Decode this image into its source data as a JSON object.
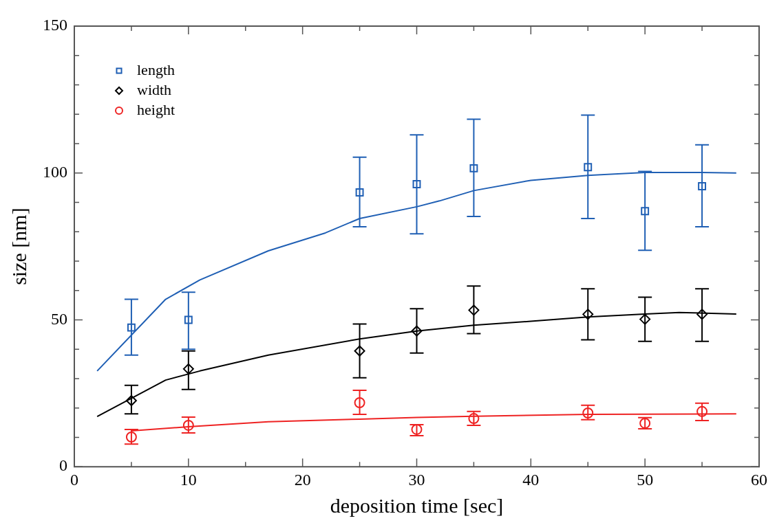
{
  "chart_data": {
    "type": "scatter",
    "xlabel": "deposition time [sec]",
    "ylabel": "size [nm]",
    "x": [
      5,
      10,
      25,
      30,
      35,
      45,
      50,
      55
    ],
    "xlim": [
      0,
      60
    ],
    "xticks": [
      0,
      {
        "value": 5,
        "label": null
      },
      10,
      {
        "value": 15,
        "label": null
      },
      20,
      {
        "value": 25,
        "label": null
      },
      30,
      {
        "value": 35,
        "label": null
      },
      40,
      {
        "value": 45,
        "label": null
      },
      50,
      {
        "value": 55,
        "label": null
      },
      60
    ],
    "ylim": [
      0,
      150
    ],
    "yticks": [
      0,
      {
        "value": 10,
        "label": null
      },
      {
        "value": 20,
        "label": null
      },
      {
        "value": 30,
        "label": null
      },
      {
        "value": 40,
        "label": null
      },
      50,
      {
        "value": 60,
        "label": null
      },
      {
        "value": 70,
        "label": null
      },
      {
        "value": 80,
        "label": null
      },
      {
        "value": 90,
        "label": null
      },
      100,
      {
        "value": 110,
        "label": null
      },
      {
        "value": 120,
        "label": null
      },
      {
        "value": 130,
        "label": null
      },
      {
        "value": 140,
        "label": null
      },
      150
    ],
    "grid": false,
    "legend": "top left",
    "series": [
      {
        "name": "length",
        "color": "#1f5fb4",
        "marker": "square",
        "values": [
          47.4,
          50,
          93.4,
          96.2,
          101.6,
          102,
          87,
          95.5
        ],
        "errors": [
          [
            38,
            57
          ],
          [
            40,
            59.4
          ],
          [
            81.7,
            105.4
          ],
          [
            79.3,
            113
          ],
          [
            85.2,
            118.3
          ],
          [
            84.5,
            119.7
          ],
          [
            73.7,
            100.5
          ],
          [
            81.7,
            109.6
          ]
        ]
      },
      {
        "name": "width",
        "color": "#000000",
        "marker": "diamond",
        "values": [
          22.5,
          33.3,
          39.4,
          46.2,
          53.3,
          51.9,
          50.2,
          51.9
        ],
        "errors": [
          [
            18,
            27.7
          ],
          [
            26.3,
            39.4
          ],
          [
            30.3,
            48.6
          ],
          [
            38.7,
            53.8
          ],
          [
            45.3,
            61.5
          ],
          [
            43.2,
            60.6
          ],
          [
            42.7,
            57.7
          ],
          [
            42.7,
            60.6
          ]
        ]
      },
      {
        "name": "height",
        "color": "#ee2222",
        "marker": "circle",
        "values": [
          10.1,
          14.1,
          21.8,
          12.7,
          16.4,
          18.3,
          14.8,
          18.8
        ],
        "errors": [
          [
            7.7,
            12.7
          ],
          [
            11.5,
            16.9
          ],
          [
            17.8,
            26
          ],
          [
            10.6,
            14.3
          ],
          [
            14.1,
            18.8
          ],
          [
            16,
            20.9
          ],
          [
            12.9,
            16.7
          ],
          [
            15.7,
            21.6
          ]
        ]
      },
      {
        "type": "line",
        "color": "#1f5fb4",
        "line_style": "solid",
        "x": [
          2,
          8,
          11,
          17,
          22,
          25,
          30,
          32,
          35,
          40,
          45,
          50,
          55,
          58
        ],
        "values": [
          32.6,
          57,
          63.6,
          73.5,
          79.6,
          84.5,
          88.5,
          90.5,
          94,
          97.5,
          99.2,
          100.2,
          100.2,
          100
        ]
      },
      {
        "type": "line",
        "color": "#000000",
        "line_style": "solid",
        "x": [
          2,
          8,
          11,
          17,
          25,
          30,
          35,
          40,
          45,
          50,
          53,
          58
        ],
        "values": [
          17.1,
          29.5,
          32.6,
          38,
          43.5,
          46.2,
          48.2,
          49.5,
          51,
          52,
          52.5,
          52
        ]
      },
      {
        "type": "line",
        "color": "#ee2222",
        "line_style": "solid",
        "x": [
          5,
          10,
          17,
          25,
          30,
          35,
          45,
          50,
          58
        ],
        "values": [
          12.2,
          13.6,
          15.3,
          16.2,
          16.8,
          17.2,
          17.8,
          17.9,
          18
        ]
      }
    ]
  }
}
